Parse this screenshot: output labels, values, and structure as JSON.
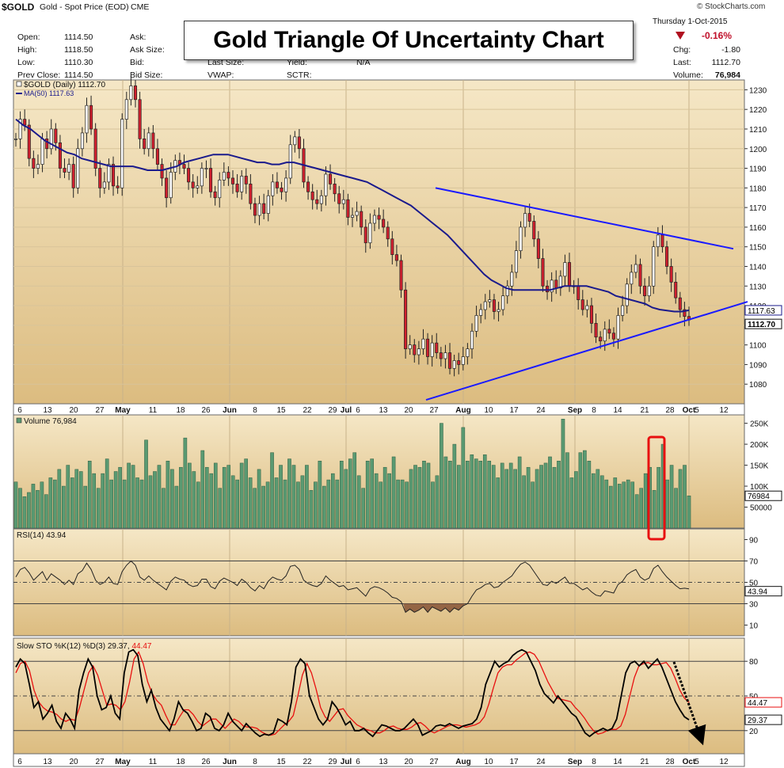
{
  "header": {
    "symbol": "$GOLD",
    "description": "Gold - Spot Price (EOD)",
    "exchange": "CME",
    "watermark": "© StockCharts.com",
    "date": "Thursday   1-Oct-2015",
    "change_pct": "-0.16%",
    "stats": [
      {
        "label": "Open:",
        "value": "1114.50"
      },
      {
        "label": "High:",
        "value": "1118.50"
      },
      {
        "label": "Low:",
        "value": "1110.30"
      },
      {
        "label": "Prev Close:",
        "value": "1114.50"
      }
    ],
    "stats2": [
      "Ask:",
      "Ask Size:",
      "Bid:",
      "Bid Size:"
    ],
    "stats3": [
      "Last Size:",
      "VWAP:"
    ],
    "stats4": [
      "Yield:",
      "SCTR:"
    ],
    "yield_value": "N/A",
    "right_stats": [
      {
        "label": "Chg:",
        "value": "-1.80"
      },
      {
        "label": "Last:",
        "value": "1112.70"
      },
      {
        "label": "Volume:",
        "value": "76,984"
      }
    ]
  },
  "title": "Gold Triangle Of Uncertainty Chart",
  "colors": {
    "panel_bg_top": "#f3e3bd",
    "panel_bg_bottom": "#d9b97a",
    "up_candle": "#ffffff",
    "down_candle": "#d0202e",
    "ma_line": "#1a1a8c",
    "trend_line": "#1a1aff",
    "volume_bar": "#5a9a72",
    "rsi_fill": "#8b5a3c",
    "stoch_d": "#e81010",
    "stoch_k": "#000000",
    "highlight": "#e81010"
  },
  "chart_data": [
    {
      "type": "candlestick",
      "title": "$GOLD (Daily) 1112.70",
      "legend": [
        "$GOLD (Daily) 1112.70",
        "MA(50) 1117.63"
      ],
      "ylim": [
        1070,
        1235
      ],
      "y_ticks": [
        1080,
        1090,
        1100,
        1110,
        1120,
        1130,
        1140,
        1150,
        1160,
        1170,
        1180,
        1190,
        1200,
        1210,
        1220,
        1230
      ],
      "last_price_label": "1112.70",
      "ma_label": "1117.63",
      "x_ticks": [
        "6",
        "13",
        "20",
        "27",
        "May",
        "11",
        "18",
        "26",
        "Jun",
        "8",
        "15",
        "22",
        "29",
        "Jul",
        "6",
        "13",
        "20",
        "27",
        "Aug",
        "10",
        "17",
        "24",
        "Sep",
        "8",
        "14",
        "21",
        "28",
        "Oct",
        "5",
        "12"
      ],
      "close": [
        1205,
        1215,
        1212,
        1195,
        1190,
        1192,
        1205,
        1200,
        1210,
        1203,
        1190,
        1188,
        1192,
        1180,
        1200,
        1208,
        1222,
        1210,
        1190,
        1180,
        1183,
        1192,
        1181,
        1180,
        1215,
        1225,
        1232,
        1225,
        1205,
        1200,
        1208,
        1200,
        1192,
        1185,
        1175,
        1188,
        1194,
        1192,
        1190,
        1183,
        1180,
        1181,
        1190,
        1190,
        1178,
        1175,
        1184,
        1188,
        1185,
        1182,
        1178,
        1186,
        1182,
        1172,
        1166,
        1172,
        1167,
        1176,
        1183,
        1180,
        1178,
        1185,
        1202,
        1206,
        1200,
        1183,
        1178,
        1174,
        1172,
        1176,
        1187,
        1182,
        1177,
        1172,
        1174,
        1165,
        1166,
        1168,
        1160,
        1152,
        1162,
        1166,
        1164,
        1160,
        1154,
        1146,
        1143,
        1128,
        1098,
        1100,
        1095,
        1098,
        1103,
        1094,
        1101,
        1096,
        1093,
        1096,
        1088,
        1092,
        1090,
        1094,
        1098,
        1107,
        1115,
        1118,
        1122,
        1123,
        1117,
        1118,
        1125,
        1130,
        1137,
        1148,
        1160,
        1167,
        1163,
        1154,
        1144,
        1130,
        1127,
        1133,
        1129,
        1135,
        1142,
        1130,
        1130,
        1123,
        1118,
        1120,
        1111,
        1104,
        1102,
        1108,
        1106,
        1103,
        1115,
        1120,
        1131,
        1137,
        1141,
        1130,
        1125,
        1130,
        1150,
        1156,
        1150,
        1140,
        1132,
        1124,
        1118,
        1114.5,
        1112.7
      ],
      "ma50": [
        1215,
        1212,
        1210,
        1207,
        1204,
        1202,
        1200,
        1198,
        1197,
        1195,
        1194,
        1193,
        1192,
        1191,
        1191,
        1191,
        1191,
        1190,
        1189,
        1189,
        1189,
        1190,
        1191,
        1193,
        1194,
        1195,
        1196,
        1197,
        1197,
        1197,
        1196,
        1195,
        1194,
        1193,
        1193,
        1192,
        1192,
        1193,
        1193,
        1192,
        1191,
        1190,
        1189,
        1188,
        1187,
        1186,
        1185,
        1184,
        1183,
        1181,
        1179,
        1177,
        1175,
        1173,
        1171,
        1168,
        1165,
        1162,
        1159,
        1156,
        1152,
        1148,
        1144,
        1140,
        1136,
        1133,
        1131,
        1129,
        1128,
        1128,
        1128,
        1128,
        1128,
        1128,
        1129,
        1130,
        1130,
        1130,
        1130,
        1129,
        1128,
        1127,
        1125,
        1124,
        1123,
        1122,
        1121,
        1119,
        1118,
        1117.5,
        1117,
        1117,
        1117.63
      ]
    },
    {
      "type": "bar",
      "title": "Volume 76,984",
      "ylim": [
        0,
        270000
      ],
      "y_ticks": [
        "50000",
        "100K",
        "150K",
        "200K",
        "250K"
      ],
      "last_label": "76984",
      "values": [
        110000,
        95000,
        75000,
        85000,
        105000,
        90000,
        110000,
        80000,
        120000,
        115000,
        140000,
        100000,
        150000,
        120000,
        140000,
        135000,
        100000,
        160000,
        130000,
        95000,
        130000,
        165000,
        115000,
        135000,
        145000,
        115000,
        155000,
        150000,
        120000,
        115000,
        210000,
        125000,
        135000,
        150000,
        95000,
        160000,
        140000,
        100000,
        145000,
        215000,
        155000,
        135000,
        110000,
        185000,
        145000,
        130000,
        155000,
        95000,
        145000,
        150000,
        125000,
        115000,
        155000,
        165000,
        120000,
        95000,
        140000,
        100000,
        110000,
        180000,
        120000,
        150000,
        115000,
        165000,
        150000,
        110000,
        125000,
        150000,
        90000,
        110000,
        160000,
        100000,
        115000,
        130000,
        115000,
        160000,
        140000,
        165000,
        180000,
        125000,
        95000,
        160000,
        165000,
        130000,
        110000,
        145000,
        130000,
        170000,
        115000,
        115000,
        110000,
        140000,
        150000,
        145000,
        160000,
        155000,
        110000,
        125000,
        250000,
        170000,
        160000,
        200000,
        150000,
        240000,
        160000,
        175000,
        165000,
        160000,
        175000,
        160000,
        150000,
        120000,
        155000,
        140000,
        155000,
        140000,
        170000,
        125000,
        145000,
        110000,
        140000,
        150000,
        155000,
        170000,
        145000,
        160000,
        260000,
        180000,
        120000,
        135000,
        180000,
        185000,
        160000,
        130000,
        140000,
        125000,
        115000,
        100000,
        120000,
        105000,
        110000,
        115000,
        110000,
        80000,
        95000,
        130000,
        145000,
        90000,
        145000,
        200000,
        115000,
        150000,
        95000,
        140000,
        150000,
        76984
      ]
    },
    {
      "type": "line",
      "title": "RSI(14) 43.94",
      "ylim": [
        0,
        100
      ],
      "y_ticks": [
        10,
        30,
        50,
        70,
        90
      ],
      "last_label": "43.94",
      "values": [
        55,
        62,
        64,
        59,
        52,
        56,
        60,
        52,
        58,
        55,
        52,
        48,
        52,
        48,
        58,
        61,
        68,
        62,
        52,
        48,
        50,
        55,
        49,
        48,
        60,
        66,
        70,
        66,
        55,
        52,
        56,
        52,
        49,
        46,
        43,
        51,
        55,
        53,
        52,
        48,
        46,
        47,
        53,
        53,
        46,
        44,
        51,
        54,
        52,
        50,
        47,
        53,
        50,
        45,
        42,
        47,
        44,
        51,
        55,
        53,
        52,
        56,
        65,
        66,
        62,
        52,
        49,
        47,
        46,
        49,
        56,
        52,
        49,
        46,
        47,
        43,
        44,
        45,
        41,
        37,
        44,
        46,
        45,
        43,
        40,
        36,
        35,
        32,
        22,
        25,
        22,
        24,
        27,
        22,
        27,
        25,
        23,
        26,
        22,
        26,
        24,
        28,
        30,
        37,
        43,
        45,
        48,
        49,
        45,
        46,
        50,
        53,
        56,
        62,
        67,
        69,
        66,
        60,
        54,
        48,
        47,
        51,
        49,
        52,
        55,
        49,
        49,
        46,
        43,
        45,
        41,
        38,
        37,
        42,
        41,
        40,
        48,
        51,
        57,
        60,
        62,
        55,
        52,
        54,
        63,
        66,
        60,
        55,
        51,
        47,
        44,
        44.5,
        43.94
      ]
    },
    {
      "type": "line",
      "title": "Slow STO %K(12) %D(3) 29.37, 44.47",
      "ylim": [
        0,
        100
      ],
      "y_ticks": [
        20,
        50,
        80
      ],
      "last_labels": [
        "44.47",
        "29.37"
      ],
      "series": [
        {
          "name": "%K(12) 29.37",
          "values": [
            75,
            82,
            78,
            60,
            40,
            45,
            30,
            35,
            42,
            28,
            22,
            35,
            30,
            22,
            55,
            70,
            82,
            75,
            50,
            38,
            40,
            50,
            35,
            30,
            70,
            88,
            90,
            85,
            60,
            45,
            55,
            40,
            30,
            25,
            20,
            30,
            45,
            38,
            35,
            28,
            20,
            22,
            35,
            32,
            22,
            20,
            25,
            35,
            28,
            24,
            20,
            26,
            22,
            18,
            15,
            17,
            16,
            18,
            30,
            28,
            25,
            45,
            75,
            82,
            78,
            50,
            40,
            30,
            25,
            30,
            45,
            40,
            33,
            25,
            28,
            20,
            20,
            22,
            18,
            15,
            20,
            25,
            24,
            22,
            20,
            20,
            22,
            26,
            30,
            25,
            16,
            18,
            20,
            24,
            25,
            24,
            26,
            24,
            22,
            24,
            25,
            26,
            30,
            40,
            60,
            70,
            80,
            75,
            78,
            80,
            85,
            88,
            90,
            88,
            80,
            72,
            60,
            52,
            48,
            44,
            50,
            45,
            40,
            35,
            32,
            25,
            18,
            15,
            18,
            20,
            22,
            20,
            22,
            30,
            50,
            70,
            78,
            80,
            76,
            80,
            74,
            78,
            82,
            75,
            65,
            55,
            45,
            38,
            32,
            29.37
          ]
        },
        {
          "name": "%D(3) 44.47",
          "values": [
            70,
            78,
            80,
            72,
            55,
            45,
            40,
            37,
            36,
            34,
            30,
            28,
            30,
            29,
            40,
            55,
            70,
            76,
            68,
            55,
            42,
            43,
            42,
            38,
            45,
            62,
            82,
            88,
            78,
            62,
            52,
            46,
            42,
            33,
            25,
            25,
            32,
            38,
            38,
            34,
            28,
            24,
            27,
            30,
            30,
            26,
            22,
            26,
            30,
            28,
            24,
            23,
            23,
            22,
            19,
            17,
            16,
            17,
            21,
            25,
            28,
            33,
            50,
            68,
            78,
            70,
            56,
            40,
            32,
            28,
            33,
            38,
            39,
            33,
            29,
            25,
            23,
            21,
            20,
            18,
            18,
            20,
            23,
            24,
            22,
            21,
            21,
            23,
            26,
            27,
            24,
            20,
            18,
            20,
            22,
            24,
            25,
            25,
            24,
            23,
            24,
            25,
            27,
            32,
            43,
            57,
            70,
            75,
            77,
            77,
            81,
            84,
            87,
            88,
            86,
            80,
            71,
            62,
            55,
            48,
            47,
            46,
            45,
            40,
            36,
            31,
            25,
            20,
            17,
            18,
            20,
            21,
            21,
            24,
            34,
            50,
            66,
            76,
            78,
            79,
            77,
            77,
            78,
            79,
            74,
            65,
            55,
            48,
            44.47
          ]
        }
      ]
    }
  ]
}
